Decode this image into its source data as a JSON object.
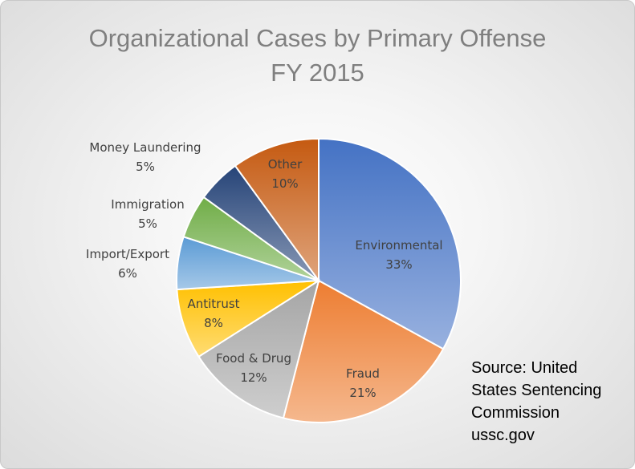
{
  "chart_data": {
    "type": "pie",
    "title_lines": [
      "Organizational Cases by Primary Offense",
      "FY 2015"
    ],
    "slices": [
      {
        "label": "Environmental",
        "value": 33,
        "display": "33%",
        "color": "#4472c4"
      },
      {
        "label": "Fraud",
        "value": 21,
        "display": "21%",
        "color": "#ed7d31"
      },
      {
        "label": "Food & Drug",
        "value": 12,
        "display": "12%",
        "color": "#a5a5a5"
      },
      {
        "label": "Antitrust",
        "value": 8,
        "display": "8%",
        "color": "#ffc000"
      },
      {
        "label": "Import/Export",
        "value": 6,
        "display": "6%",
        "color": "#5b9bd5"
      },
      {
        "label": "Immigration",
        "value": 5,
        "display": "5%",
        "color": "#70ad47"
      },
      {
        "label": "Money Laundering",
        "value": 5,
        "display": "5%",
        "color": "#264478"
      },
      {
        "label": "Other",
        "value": 10,
        "display": "10%",
        "color": "#c55a11"
      }
    ]
  },
  "source": {
    "lines": [
      "Source: United",
      "States Sentencing",
      "Commission",
      "ussc.gov"
    ]
  }
}
